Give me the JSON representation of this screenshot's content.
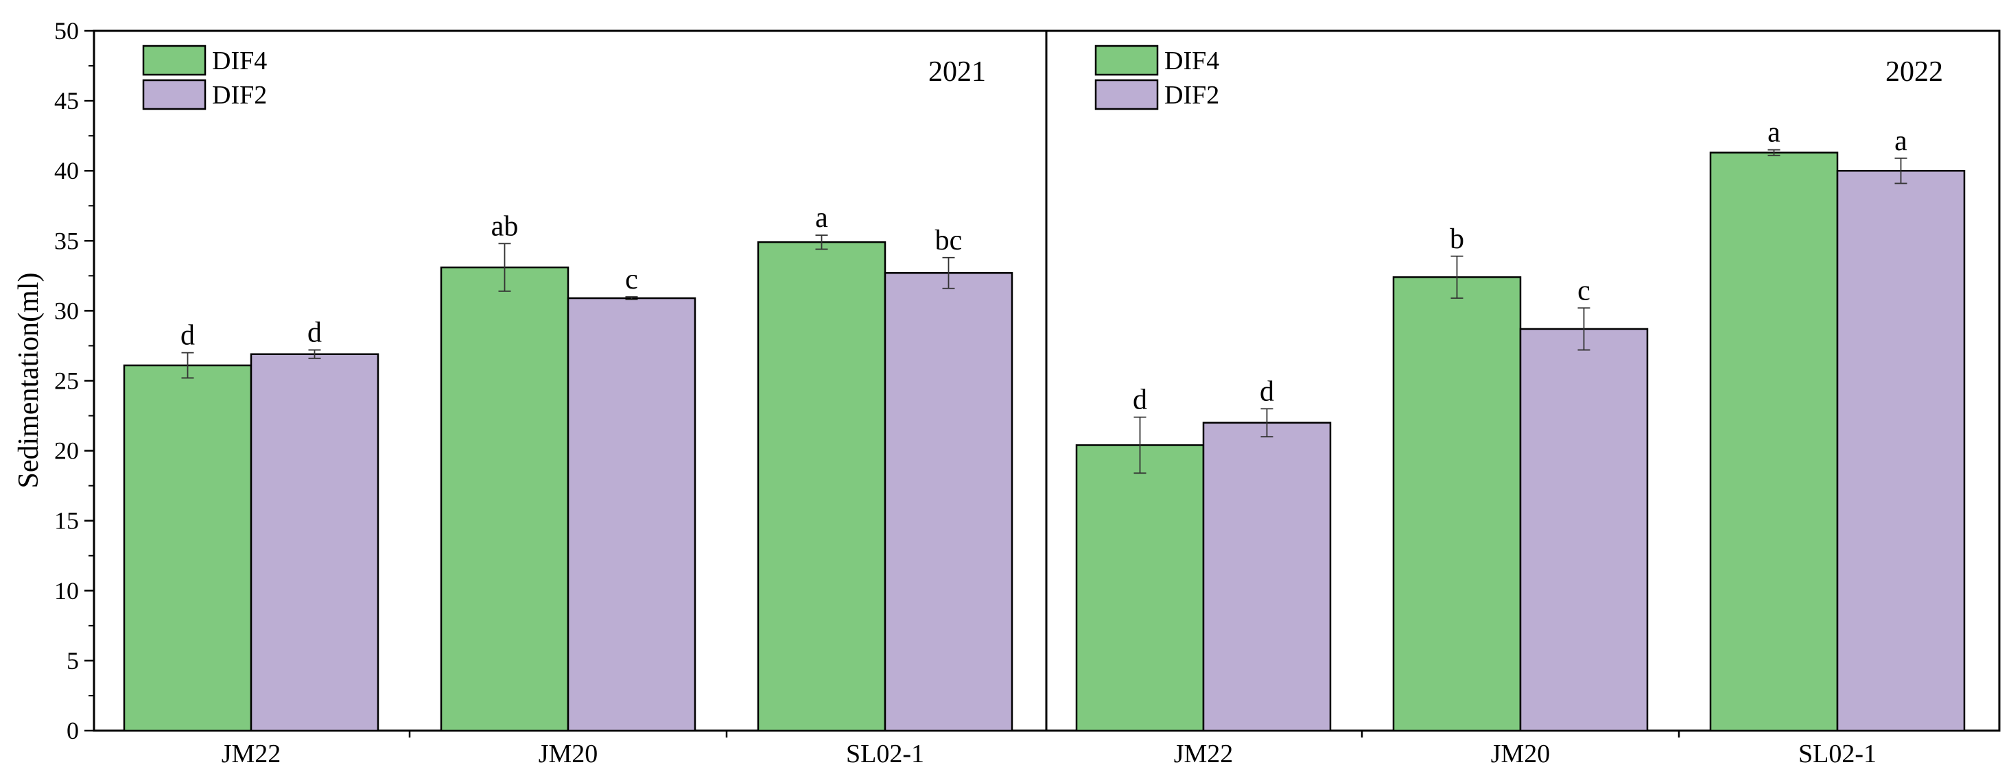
{
  "chart_data": {
    "type": "bar",
    "ylabel": "Sedimentation(ml)",
    "ylim": [
      0,
      50
    ],
    "yticks": [
      0,
      5,
      10,
      15,
      20,
      25,
      30,
      35,
      40,
      45,
      50
    ],
    "legend_position": "top-left",
    "colors": {
      "DIF4": "#80c97f",
      "DIF2": "#bcaed3"
    },
    "panels": [
      {
        "title": "2021",
        "categories": [
          "JM22",
          "JM20",
          "SL02-1"
        ],
        "series": [
          {
            "name": "DIF4",
            "values": [
              26.1,
              33.1,
              34.9
            ],
            "errors": [
              0.9,
              1.7,
              0.5
            ],
            "letters": [
              "d",
              "ab",
              "a"
            ]
          },
          {
            "name": "DIF2",
            "values": [
              26.9,
              30.9,
              32.7
            ],
            "errors": [
              0.3,
              0.1,
              1.1
            ],
            "letters": [
              "d",
              "c",
              "bc"
            ]
          }
        ]
      },
      {
        "title": "2022",
        "categories": [
          "JM22",
          "JM20",
          "SL02-1"
        ],
        "series": [
          {
            "name": "DIF4",
            "values": [
              20.4,
              32.4,
              41.3
            ],
            "errors": [
              2.0,
              1.5,
              0.2
            ],
            "letters": [
              "d",
              "b",
              "a"
            ]
          },
          {
            "name": "DIF2",
            "values": [
              22.0,
              28.7,
              40.0
            ],
            "errors": [
              1.0,
              1.5,
              0.9
            ],
            "letters": [
              "d",
              "c",
              "a"
            ]
          }
        ]
      }
    ]
  }
}
